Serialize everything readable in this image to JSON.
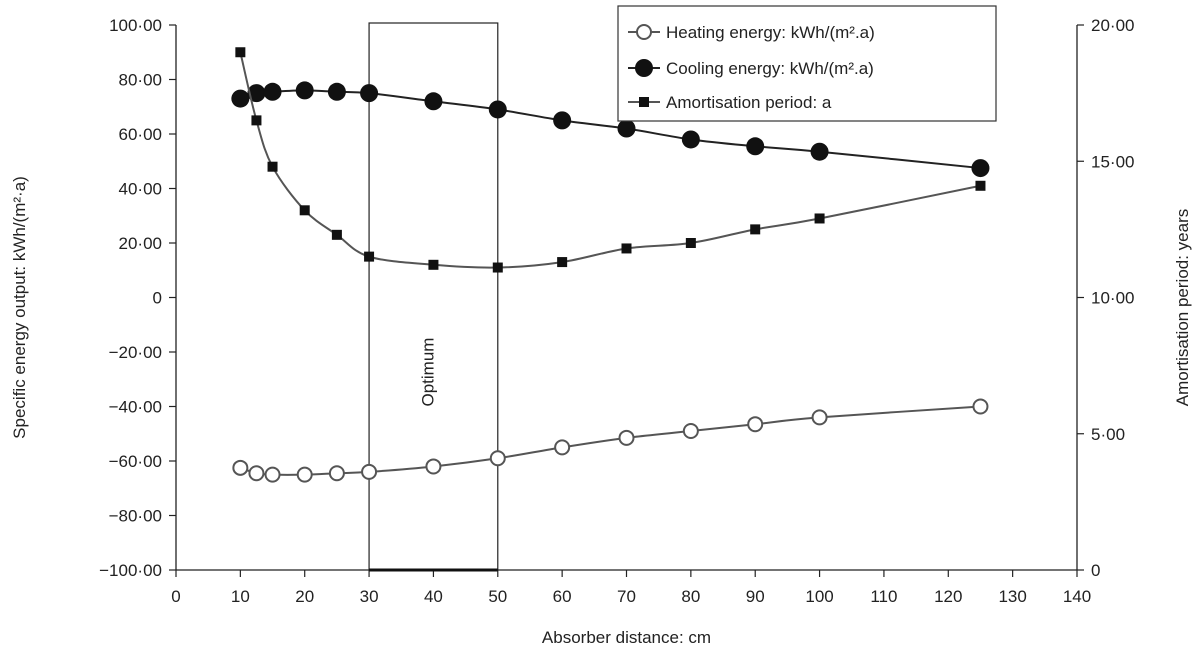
{
  "chart_data": {
    "type": "line",
    "xlabel": "Absorber distance: cm",
    "ylabel": "Specific energy output: kWh/(m²·a)",
    "y2label": "Amortisation period: years",
    "xlim": [
      0,
      140
    ],
    "ylim": [
      -100,
      100
    ],
    "y2lim": [
      0,
      20
    ],
    "x_ticks": [
      "0",
      "10",
      "20",
      "30",
      "40",
      "50",
      "60",
      "70",
      "80",
      "90",
      "100",
      "110",
      "120",
      "130",
      "140"
    ],
    "y_ticks": [
      "100·00",
      "80·00",
      "60·00",
      "40·00",
      "20·00",
      "0",
      "−20·00",
      "−40·00",
      "−60·00",
      "−80·00",
      "−100·00"
    ],
    "y2_ticks": [
      "20·00",
      "15·00",
      "10·00",
      "5·00",
      "0"
    ],
    "grid": false,
    "legend_position": "top-right",
    "series": [
      {
        "name": "Heating energy: kWh/(m².a)",
        "axis": "left",
        "marker": "open-circle",
        "x": [
          10,
          12.5,
          15,
          20,
          25,
          30,
          40,
          50,
          60,
          70,
          80,
          90,
          100,
          125
        ],
        "values": [
          -62.5,
          -64.5,
          -65,
          -65,
          -64.5,
          -64,
          -62,
          -59,
          -55,
          -51.5,
          -49,
          -46.5,
          -44,
          -40
        ]
      },
      {
        "name": "Cooling energy: kWh/(m².a)",
        "axis": "left",
        "marker": "filled-circle",
        "x": [
          10,
          12.5,
          15,
          20,
          25,
          30,
          40,
          50,
          60,
          70,
          80,
          90,
          100,
          125
        ],
        "values": [
          73,
          75,
          75.5,
          76,
          75.5,
          75,
          72,
          69,
          65,
          62,
          58,
          55.5,
          53.5,
          47.5
        ]
      },
      {
        "name": "Amortisation period: a",
        "axis": "right",
        "marker": "filled-square",
        "x": [
          10,
          12.5,
          15,
          20,
          25,
          30,
          40,
          50,
          60,
          70,
          80,
          90,
          100,
          125
        ],
        "values": [
          19,
          16.5,
          14.8,
          13.2,
          12.3,
          11.5,
          11.2,
          11.1,
          11.3,
          11.8,
          12,
          12.5,
          12.9,
          14.1
        ]
      }
    ],
    "annotations": [
      {
        "text": "Optimum",
        "x_range": [
          30,
          50
        ]
      }
    ]
  }
}
